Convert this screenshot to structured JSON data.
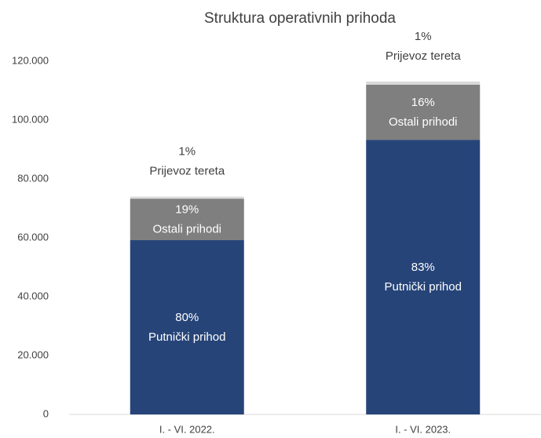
{
  "chart_data": {
    "type": "stacked_bar",
    "title": "Struktura operativnih prihoda",
    "categories": [
      "I. - VI. 2022.",
      "I. - VI. 2023."
    ],
    "series": [
      {
        "name": "Putnički prihod",
        "color": "#264478",
        "values": [
          59200,
          93300
        ],
        "labels": [
          "80%",
          "83%"
        ]
      },
      {
        "name": "Ostali prihodi",
        "color": "#7f7f7f",
        "values": [
          14100,
          18700
        ],
        "labels": [
          "19%",
          "16%"
        ]
      },
      {
        "name": "Prijevoz tereta",
        "color": "#d9d9d9",
        "values": [
          700,
          1100
        ],
        "labels": [
          "1%",
          "1%"
        ]
      }
    ],
    "ylim": [
      0,
      120000
    ],
    "yticks": [
      0,
      {
        "value": 20000,
        "label": "20.000"
      },
      {
        "value": 40000,
        "label": "40.000"
      },
      {
        "value": 60000,
        "label": "60.000"
      },
      {
        "value": 80000,
        "label": "80.000"
      },
      {
        "value": 100000,
        "label": "100.000"
      },
      {
        "value": 120000,
        "label": "120.000"
      }
    ],
    "grid": false
  }
}
